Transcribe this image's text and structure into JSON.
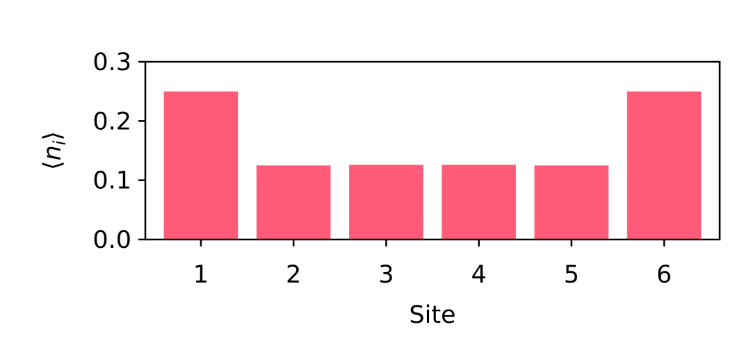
{
  "chart_data": {
    "type": "bar",
    "categories": [
      "1",
      "2",
      "3",
      "4",
      "5",
      "6"
    ],
    "values": [
      0.25,
      0.125,
      0.126,
      0.126,
      0.125,
      0.25
    ],
    "title": "",
    "xlabel": "Site",
    "ylabel": {
      "open": "⟨",
      "symbol": "n",
      "subscript": "i",
      "close": "⟩"
    },
    "ylim": [
      0.0,
      0.3
    ],
    "yticks": [
      "0.0",
      "0.1",
      "0.2",
      "0.3"
    ],
    "ytick_values": [
      0.0,
      0.1,
      0.2,
      0.3
    ],
    "bar_color": "#ff5a78",
    "grid": false,
    "legend": "none"
  }
}
